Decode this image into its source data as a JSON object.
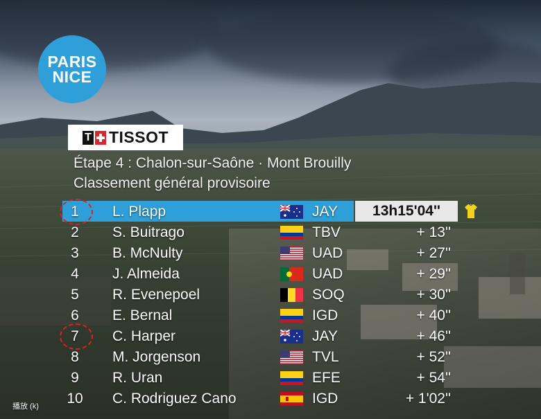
{
  "broadcast": {
    "race_logo": {
      "line1": "PARIS",
      "line2": "NICE",
      "color": "#2f9fd9"
    },
    "sponsor": {
      "t": "T",
      "word": "TISSOT"
    },
    "title_line1": "Étape 4 : Chalon-sur-Saône · Mont Brouilly",
    "title_line2": "Classement général provisoire",
    "leader_time": "13h15'04''",
    "leader_jersey_color": "#f2d21b",
    "highlight_color": "#e02020",
    "rows": [
      {
        "pos": "1",
        "name": "L. Plapp",
        "flag": "australia",
        "team": "JAY",
        "time": "13h15'04''"
      },
      {
        "pos": "2",
        "name": "S. Buitrago",
        "flag": "colombia",
        "team": "TBV",
        "time": "+ 13''"
      },
      {
        "pos": "3",
        "name": "B. McNulty",
        "flag": "usa",
        "team": "UAD",
        "time": "+ 27''"
      },
      {
        "pos": "4",
        "name": "J. Almeida",
        "flag": "portugal",
        "team": "UAD",
        "time": "+ 29''"
      },
      {
        "pos": "5",
        "name": "R. Evenepoel",
        "flag": "belgium",
        "team": "SOQ",
        "time": "+ 30''"
      },
      {
        "pos": "6",
        "name": "E. Bernal",
        "flag": "colombia",
        "team": "IGD",
        "time": "+ 40''"
      },
      {
        "pos": "7",
        "name": "C. Harper",
        "flag": "australia",
        "team": "JAY",
        "time": "+ 46''"
      },
      {
        "pos": "8",
        "name": "M. Jorgenson",
        "flag": "usa",
        "team": "TVL",
        "time": "+ 52''"
      },
      {
        "pos": "9",
        "name": "R. Uran",
        "flag": "colombia",
        "team": "EFE",
        "time": "+ 54''"
      },
      {
        "pos": "10",
        "name": "C. Rodriguez Cano",
        "flag": "spain",
        "team": "IGD",
        "time": "+ 1'02''"
      }
    ]
  },
  "player": {
    "play_hint": "播放 (k)"
  }
}
